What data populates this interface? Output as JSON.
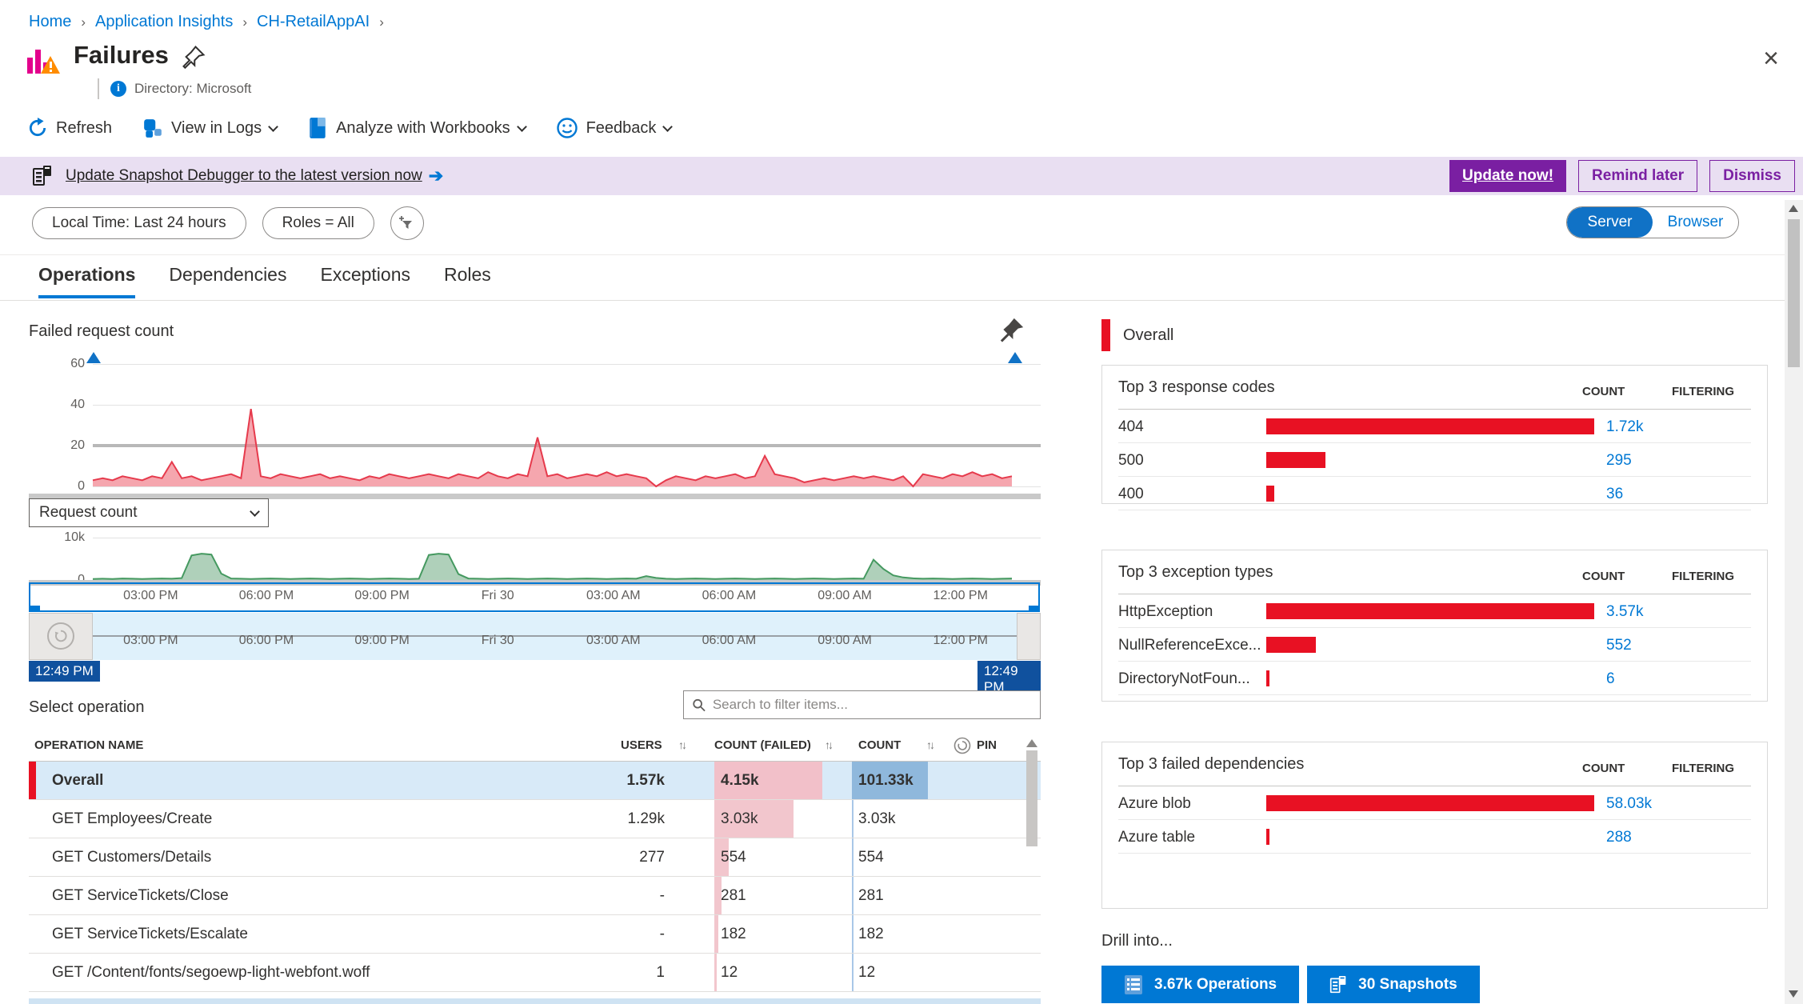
{
  "breadcrumb": {
    "items": [
      "Home",
      "Application Insights",
      "CH-RetailAppAI"
    ]
  },
  "header": {
    "title": "Failures",
    "directory": "Directory: Microsoft"
  },
  "toolbar": {
    "refresh": "Refresh",
    "view_in_logs": "View in Logs",
    "analyze": "Analyze with Workbooks",
    "feedback": "Feedback"
  },
  "banner": {
    "link": "Update Snapshot Debugger to the latest version now",
    "update": "Update now!",
    "remind": "Remind later",
    "dismiss": "Dismiss"
  },
  "filters": {
    "time_pill": "Local Time: Last 24 hours",
    "roles_pill": "Roles = All",
    "toggle": {
      "server": "Server",
      "browser": "Browser",
      "selected": "Server"
    }
  },
  "tabs": {
    "items": [
      "Operations",
      "Dependencies",
      "Exceptions",
      "Roles"
    ],
    "active": "Operations"
  },
  "left": {
    "chart1_title": "Failed request count",
    "metric_dropdown": "Request count",
    "slider": {
      "start_label": "12:49 PM",
      "end_label": "12:49 PM"
    },
    "select_operation": "Select operation",
    "search_placeholder": "Search to filter items...",
    "table": {
      "headers": {
        "name": "OPERATION NAME",
        "users": "USERS",
        "failed": "COUNT (FAILED)",
        "count": "COUNT",
        "pin": "PIN"
      },
      "rows": [
        {
          "name": "Overall",
          "users": "1.57k",
          "failed": "4.15k",
          "count": "101.33k",
          "failed_pct": 100,
          "overall": true
        },
        {
          "name": "GET Employees/Create",
          "users": "1.29k",
          "failed": "3.03k",
          "count": "3.03k",
          "failed_pct": 73,
          "overall": false
        },
        {
          "name": "GET Customers/Details",
          "users": "277",
          "failed": "554",
          "count": "554",
          "failed_pct": 13,
          "overall": false
        },
        {
          "name": "GET ServiceTickets/Close",
          "users": "-",
          "failed": "281",
          "count": "281",
          "failed_pct": 7,
          "overall": false
        },
        {
          "name": "GET ServiceTickets/Escalate",
          "users": "-",
          "failed": "182",
          "count": "182",
          "failed_pct": 4,
          "overall": false
        },
        {
          "name": "GET /Content/fonts/segoewp-light-webfont.woff",
          "users": "1",
          "failed": "12",
          "count": "12",
          "failed_pct": 2,
          "overall": false
        }
      ]
    }
  },
  "right": {
    "legend": "Overall",
    "cards": [
      {
        "title": "Top 3 response codes",
        "count_header": "COUNT",
        "filtering_header": "FILTERING",
        "rows": [
          {
            "label": "404",
            "count": "1.72k",
            "pct": 100
          },
          {
            "label": "500",
            "count": "295",
            "pct": 18
          },
          {
            "label": "400",
            "count": "36",
            "pct": 2.5
          }
        ]
      },
      {
        "title": "Top 3 exception types",
        "count_header": "COUNT",
        "filtering_header": "FILTERING",
        "rows": [
          {
            "label": "HttpException",
            "count": "3.57k",
            "pct": 100
          },
          {
            "label": "NullReferenceExce...",
            "count": "552",
            "pct": 15
          },
          {
            "label": "DirectoryNotFoun...",
            "count": "6",
            "pct": 1
          }
        ]
      },
      {
        "title": "Top 3 failed dependencies",
        "count_header": "COUNT",
        "filtering_header": "FILTERING",
        "rows": [
          {
            "label": "Azure blob",
            "count": "58.03k",
            "pct": 100
          },
          {
            "label": "Azure table",
            "count": "288",
            "pct": 1
          }
        ]
      }
    ],
    "drill": {
      "label": "Drill into...",
      "buttons": [
        {
          "label": "3.67k Operations"
        },
        {
          "label": "30 Snapshots"
        }
      ]
    }
  },
  "chart_data": [
    {
      "type": "area",
      "title": "Failed request count",
      "ylim": [
        0,
        60
      ],
      "yticks": [
        60,
        40,
        20,
        0
      ],
      "x_labels": [
        "03:00 PM",
        "06:00 PM",
        "09:00 PM",
        "Fri 30",
        "03:00 AM",
        "06:00 AM",
        "09:00 AM",
        "12:00 PM"
      ],
      "line_color": "#E63A4C",
      "fill_color": "rgba(240,119,130,0.65)",
      "values": [
        3,
        4,
        3,
        5,
        4,
        3,
        5,
        4,
        12,
        4,
        5,
        3,
        4,
        5,
        6,
        4,
        38,
        5,
        4,
        6,
        5,
        4,
        5,
        6,
        4,
        5,
        4,
        3,
        5,
        4,
        6,
        5,
        4,
        5,
        6,
        5,
        4,
        6,
        5,
        4,
        7,
        5,
        4,
        6,
        5,
        24,
        5,
        6,
        4,
        5,
        6,
        5,
        7,
        5,
        6,
        5,
        4,
        0,
        3,
        5,
        4,
        3,
        5,
        4,
        5,
        6,
        4,
        5,
        15,
        6,
        5,
        4,
        2,
        3,
        4,
        3,
        4,
        5,
        4,
        5,
        4,
        3,
        5,
        0,
        6,
        5,
        4,
        6,
        5,
        7,
        5,
        6,
        4,
        5
      ]
    },
    {
      "type": "area",
      "title": "Request count",
      "ylim": [
        0,
        10000
      ],
      "yticks": [
        "10k",
        "0"
      ],
      "x_labels": [
        "03:00 PM",
        "06:00 PM",
        "09:00 PM",
        "Fri 30",
        "03:00 AM",
        "06:00 AM",
        "09:00 AM",
        "12:00 PM"
      ],
      "line_color": "#459960",
      "fill_color": "rgba(110,170,130,0.55)",
      "values": [
        250,
        300,
        250,
        350,
        300,
        250,
        300,
        350,
        300,
        450,
        5800,
        6200,
        6000,
        1500,
        350,
        300,
        250,
        300,
        350,
        300,
        250,
        300,
        350,
        300,
        250,
        300,
        350,
        300,
        250,
        300,
        350,
        300,
        250,
        300,
        5900,
        6200,
        6000,
        1400,
        350,
        300,
        250,
        300,
        350,
        300,
        250,
        300,
        350,
        300,
        250,
        300,
        350,
        300,
        250,
        300,
        350,
        300,
        900,
        500,
        300,
        250,
        300,
        350,
        300,
        250,
        300,
        350,
        300,
        250,
        300,
        350,
        300,
        250,
        300,
        350,
        300,
        250,
        300,
        350,
        300,
        4800,
        2600,
        1100,
        600,
        400,
        300,
        350,
        300,
        250,
        300,
        350,
        300,
        250,
        300,
        350
      ]
    }
  ]
}
